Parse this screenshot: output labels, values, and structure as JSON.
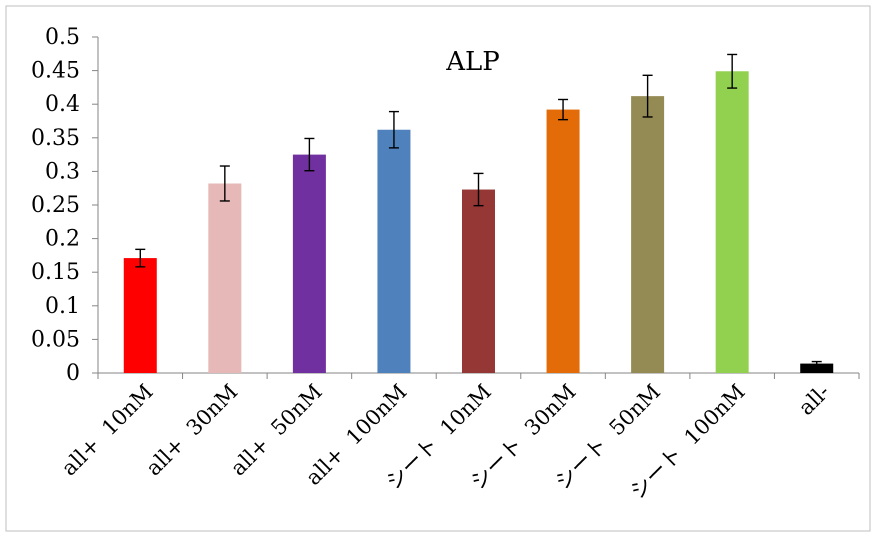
{
  "chart_data": {
    "type": "bar",
    "title": "ALP",
    "xlabel": "",
    "ylabel": "",
    "ylim": [
      0,
      0.5
    ],
    "yticks": [
      "0",
      "0.05",
      "0.1",
      "0.15",
      "0.2",
      "0.25",
      "0.3",
      "0.35",
      "0.4",
      "0.45",
      "0.5"
    ],
    "grid": false,
    "legend": "none",
    "categories": [
      "all+  10nM",
      "all+  30nM",
      "all+  50nM",
      "all+  100nM",
      "シート  10nM",
      "シート  30nM",
      "シート  50nM",
      "シート  100nM",
      "all-"
    ],
    "values": [
      0.171,
      0.282,
      0.325,
      0.362,
      0.273,
      0.392,
      0.412,
      0.449,
      0.014
    ],
    "errors": [
      0.013,
      0.026,
      0.024,
      0.027,
      0.024,
      0.015,
      0.031,
      0.025,
      0.003
    ],
    "colors": [
      "#ff0000",
      "#e6b8b7",
      "#7030a0",
      "#4f81bd",
      "#953735",
      "#e36c09",
      "#948a54",
      "#92d050",
      "#000000"
    ]
  }
}
